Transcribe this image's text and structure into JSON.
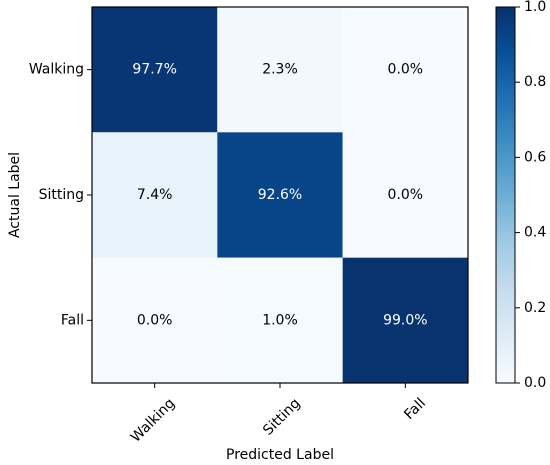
{
  "chart_data": {
    "type": "heatmap",
    "title": "",
    "xlabel": "Predicted Label",
    "ylabel": "Actual Label",
    "x_categories": [
      "Walking",
      "Sitting",
      "Fall"
    ],
    "y_categories": [
      "Walking",
      "Sitting",
      "Fall"
    ],
    "values": [
      [
        0.977,
        0.023,
        0.0
      ],
      [
        0.074,
        0.926,
        0.0
      ],
      [
        0.0,
        0.01,
        0.99
      ]
    ],
    "cell_labels": [
      [
        "97.7%",
        "2.3%",
        "0.0%"
      ],
      [
        "7.4%",
        "92.6%",
        "0.0%"
      ],
      [
        "0.0%",
        "1.0%",
        "99.0%"
      ]
    ],
    "colormap": "Blues",
    "colorbar": {
      "min": 0.0,
      "max": 1.0,
      "ticks": [
        "0.0",
        "0.2",
        "0.4",
        "0.6",
        "0.8",
        "1.0"
      ]
    },
    "grid": false
  }
}
